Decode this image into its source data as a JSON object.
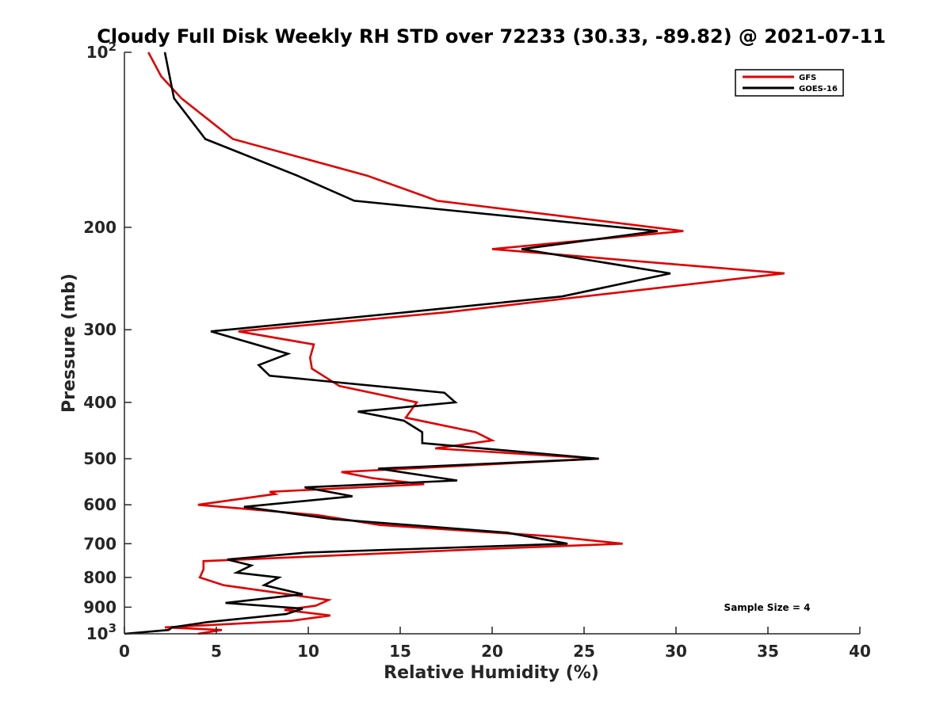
{
  "chart_data": {
    "type": "line",
    "title": "Cloudy Full Disk Weekly RH STD over 72233 (30.33, -89.82) @ 2021-07-11",
    "xlabel": "Relative Humidity (%)",
    "ylabel": "Pressure (mb)",
    "xlim": [
      0,
      40
    ],
    "ylim": [
      100,
      1000
    ],
    "yscale": "log",
    "y_reversed": true,
    "grid": false,
    "xticks": [
      0,
      5,
      10,
      15,
      20,
      25,
      30,
      35,
      40
    ],
    "xtick_labels": [
      "0",
      "5",
      "10",
      "15",
      "20",
      "25",
      "30",
      "35",
      "40"
    ],
    "yticks": [
      100,
      200,
      300,
      400,
      500,
      600,
      700,
      800,
      900,
      1000
    ],
    "ytick_labels": [
      {
        "base": "10",
        "exp": "2"
      },
      {
        "base": "200",
        "exp": ""
      },
      {
        "base": "300",
        "exp": ""
      },
      {
        "base": "400",
        "exp": ""
      },
      {
        "base": "500",
        "exp": ""
      },
      {
        "base": "600",
        "exp": ""
      },
      {
        "base": "700",
        "exp": ""
      },
      {
        "base": "800",
        "exp": ""
      },
      {
        "base": "900",
        "exp": ""
      },
      {
        "base": "10",
        "exp": "3"
      }
    ],
    "legend_position": "top-right",
    "annotation": "Sample Size = 4",
    "series": [
      {
        "name": "GFS",
        "color": "#e00000",
        "points": [
          [
            1.3,
            100
          ],
          [
            2.0,
            110
          ],
          [
            3.1,
            120
          ],
          [
            5.9,
            141
          ],
          [
            13.2,
            163
          ],
          [
            17.0,
            180
          ],
          [
            30.4,
            203
          ],
          [
            20.0,
            218
          ],
          [
            35.9,
            240
          ],
          [
            17.5,
            280
          ],
          [
            6.2,
            302
          ],
          [
            10.3,
            318
          ],
          [
            10.1,
            335
          ],
          [
            10.2,
            350
          ],
          [
            11.7,
            375
          ],
          [
            15.9,
            400
          ],
          [
            15.3,
            425
          ],
          [
            19.1,
            450
          ],
          [
            20.0,
            465
          ],
          [
            16.9,
            480
          ],
          [
            25.8,
            500
          ],
          [
            11.8,
            527
          ],
          [
            13.5,
            540
          ],
          [
            16.3,
            553
          ],
          [
            7.9,
            570
          ],
          [
            8.2,
            575
          ],
          [
            4.0,
            600
          ],
          [
            10.5,
            625
          ],
          [
            13.9,
            650
          ],
          [
            23.3,
            680
          ],
          [
            27.1,
            700
          ],
          [
            19.5,
            715
          ],
          [
            4.3,
            750
          ],
          [
            4.3,
            775
          ],
          [
            4.1,
            800
          ],
          [
            5.4,
            825
          ],
          [
            8.3,
            850
          ],
          [
            11.1,
            875
          ],
          [
            10.4,
            895
          ],
          [
            8.7,
            910
          ],
          [
            11.2,
            930
          ],
          [
            9.1,
            950
          ],
          [
            2.2,
            975
          ],
          [
            5.3,
            985
          ],
          [
            4.0,
            1000
          ]
        ]
      },
      {
        "name": "GOES-16",
        "color": "#000000",
        "points": [
          [
            2.2,
            100
          ],
          [
            2.7,
            120
          ],
          [
            4.4,
            141
          ],
          [
            9.4,
            163
          ],
          [
            12.5,
            180
          ],
          [
            29.0,
            203
          ],
          [
            21.6,
            218
          ],
          [
            29.7,
            240
          ],
          [
            23.8,
            263
          ],
          [
            15.3,
            280
          ],
          [
            4.7,
            302
          ],
          [
            8.9,
            330
          ],
          [
            7.3,
            345
          ],
          [
            7.9,
            360
          ],
          [
            17.4,
            385
          ],
          [
            18.0,
            400
          ],
          [
            12.7,
            415
          ],
          [
            15.2,
            430
          ],
          [
            16.2,
            450
          ],
          [
            16.2,
            470
          ],
          [
            25.8,
            500
          ],
          [
            13.8,
            520
          ],
          [
            18.1,
            545
          ],
          [
            9.8,
            560
          ],
          [
            12.4,
            580
          ],
          [
            6.5,
            605
          ],
          [
            11.3,
            635
          ],
          [
            20.8,
            670
          ],
          [
            24.1,
            700
          ],
          [
            9.9,
            725
          ],
          [
            5.6,
            745
          ],
          [
            6.9,
            763
          ],
          [
            6.1,
            785
          ],
          [
            8.4,
            800
          ],
          [
            7.6,
            825
          ],
          [
            9.7,
            855
          ],
          [
            5.5,
            885
          ],
          [
            9.7,
            905
          ],
          [
            8.8,
            925
          ],
          [
            4.5,
            955
          ],
          [
            2.6,
            975
          ],
          [
            2.4,
            985
          ],
          [
            0.0,
            1000
          ]
        ]
      }
    ]
  }
}
